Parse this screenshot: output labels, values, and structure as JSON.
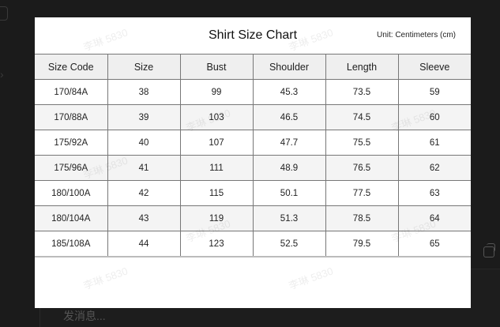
{
  "chart": {
    "title": "Shirt Size Chart",
    "unit": "Unit: Centimeters (cm)",
    "headers": [
      "Size Code",
      "Size",
      "Bust",
      "Shoulder",
      "Length",
      "Sleeve"
    ],
    "rows": [
      [
        "170/84A",
        "38",
        "99",
        "45.3",
        "73.5",
        "59"
      ],
      [
        "170/88A",
        "39",
        "103",
        "46.5",
        "74.5",
        "60"
      ],
      [
        "175/92A",
        "40",
        "107",
        "47.7",
        "75.5",
        "61"
      ],
      [
        "175/96A",
        "41",
        "111",
        "48.9",
        "76.5",
        "62"
      ],
      [
        "180/100A",
        "42",
        "115",
        "50.1",
        "77.5",
        "63"
      ],
      [
        "180/104A",
        "43",
        "119",
        "51.3",
        "78.5",
        "64"
      ],
      [
        "185/108A",
        "44",
        "123",
        "52.5",
        "79.5",
        "65"
      ]
    ],
    "watermark": "李琳 5830"
  },
  "chat": {
    "input_placeholder": "发消息..."
  }
}
